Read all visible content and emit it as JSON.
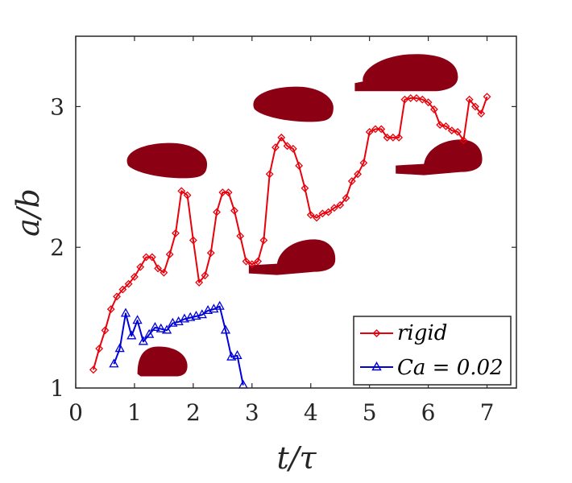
{
  "chart_data": {
    "type": "line",
    "xlabel": "t/τ",
    "ylabel": "a/b",
    "xlim": [
      0,
      7.5
    ],
    "ylim": [
      1,
      3.5
    ],
    "xticks": [
      "0",
      "1",
      "2",
      "3",
      "4",
      "5",
      "6",
      "7"
    ],
    "yticks": [
      "1",
      "2",
      "3"
    ],
    "legend_position": "bottom-right",
    "grid": false,
    "series": [
      {
        "name": "rigid",
        "color": "#e8000b",
        "marker": "diamond",
        "x": [
          0.3,
          0.4,
          0.5,
          0.6,
          0.7,
          0.8,
          0.9,
          1.0,
          1.1,
          1.2,
          1.3,
          1.4,
          1.5,
          1.6,
          1.7,
          1.8,
          1.9,
          2.0,
          2.1,
          2.2,
          2.3,
          2.4,
          2.5,
          2.6,
          2.7,
          2.8,
          2.9,
          3.0,
          3.1,
          3.2,
          3.3,
          3.4,
          3.5,
          3.6,
          3.7,
          3.8,
          3.9,
          4.0,
          4.1,
          4.2,
          4.3,
          4.4,
          4.5,
          4.6,
          4.7,
          4.8,
          4.9,
          5.0,
          5.1,
          5.2,
          5.3,
          5.4,
          5.5,
          5.6,
          5.7,
          5.8,
          5.9,
          6.0,
          6.1,
          6.2,
          6.3,
          6.4,
          6.5,
          6.6,
          6.7,
          6.8,
          6.9,
          7.0
        ],
        "y": [
          1.13,
          1.28,
          1.41,
          1.56,
          1.65,
          1.7,
          1.74,
          1.79,
          1.86,
          1.93,
          1.93,
          1.85,
          1.82,
          1.95,
          2.1,
          2.4,
          2.37,
          2.05,
          1.75,
          1.8,
          1.96,
          2.25,
          2.39,
          2.39,
          2.26,
          2.08,
          1.9,
          1.88,
          1.9,
          2.05,
          2.52,
          2.71,
          2.78,
          2.72,
          2.7,
          2.58,
          2.42,
          2.23,
          2.21,
          2.24,
          2.25,
          2.28,
          2.3,
          2.35,
          2.47,
          2.52,
          2.6,
          2.82,
          2.84,
          2.84,
          2.78,
          2.78,
          2.78,
          3.05,
          3.06,
          3.06,
          3.05,
          3.03,
          2.98,
          2.87,
          2.86,
          2.83,
          2.82,
          2.76,
          3.05,
          3.0,
          2.95,
          3.07
        ]
      },
      {
        "name": "Ca = 0.02",
        "color": "#0000d8",
        "marker": "triangle",
        "x": [
          0.65,
          0.75,
          0.85,
          0.95,
          1.05,
          1.15,
          1.25,
          1.35,
          1.45,
          1.55,
          1.65,
          1.75,
          1.85,
          1.95,
          2.05,
          2.15,
          2.25,
          2.35,
          2.45,
          2.55,
          2.65,
          2.75,
          2.85
        ],
        "y": [
          1.17,
          1.28,
          1.53,
          1.37,
          1.48,
          1.33,
          1.38,
          1.43,
          1.42,
          1.41,
          1.46,
          1.47,
          1.49,
          1.5,
          1.51,
          1.52,
          1.55,
          1.56,
          1.58,
          1.41,
          1.22,
          1.23,
          1.02
        ]
      }
    ],
    "legend": [
      {
        "label": "rigid"
      },
      {
        "label": "Ca = 0.02"
      }
    ],
    "insets": [
      {
        "shape": "droplet-cap",
        "color": "#8b0013",
        "near_t": 1.05,
        "near_ab": 1.1
      },
      {
        "shape": "droplet-blob",
        "color": "#8b0013",
        "near_t": 1.55,
        "near_ab": 2.57
      },
      {
        "shape": "droplet-tongue",
        "color": "#8b0013",
        "near_t": 3.7,
        "near_ab": 1.86
      },
      {
        "shape": "droplet-blob",
        "color": "#8b0013",
        "near_t": 3.7,
        "near_ab": 2.97
      },
      {
        "shape": "droplet-elongated",
        "color": "#8b0013",
        "near_t": 5.6,
        "near_ab": 3.19
      },
      {
        "shape": "droplet-tongue",
        "color": "#8b0013",
        "near_t": 6.2,
        "near_ab": 2.57
      }
    ]
  }
}
